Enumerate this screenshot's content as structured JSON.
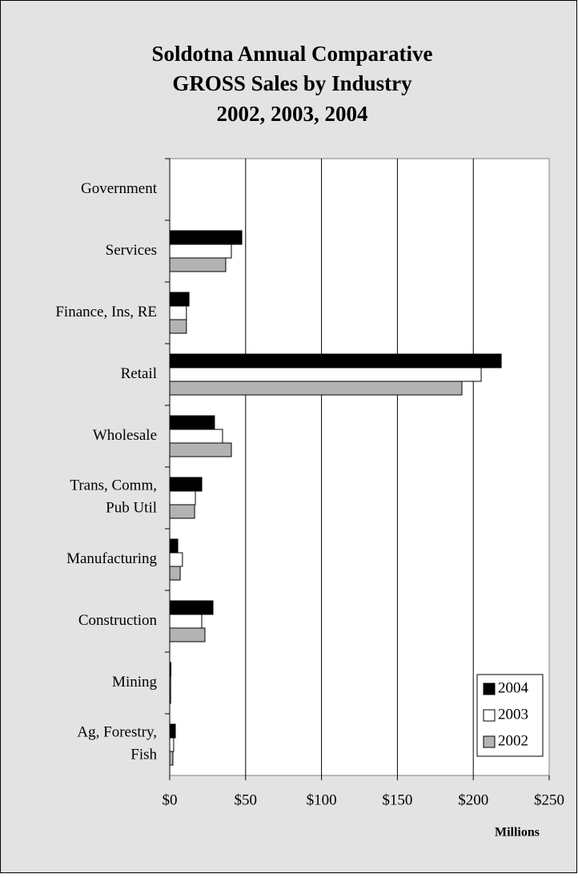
{
  "chart_data": {
    "type": "hbar",
    "title": [
      "Soldotna Annual Comparative",
      "GROSS Sales by Industry",
      "2002, 2003, 2004"
    ],
    "categories": [
      "Government",
      "Services",
      "Finance, Ins, RE",
      "Retail",
      "Wholesale",
      "Trans, Comm,\nPub Util",
      "Manufacturing",
      "Construction",
      "Mining",
      "Ag, Forestry,\nFish"
    ],
    "series": [
      {
        "name": "2004",
        "color": "#000000",
        "values": [
          0,
          47.5,
          12.7,
          218.4,
          29.5,
          21.1,
          5.3,
          28.5,
          0.8,
          3.7
        ]
      },
      {
        "name": "2003",
        "color": "#ffffff",
        "values": [
          0,
          40.6,
          11,
          205.2,
          34.8,
          16.9,
          8.4,
          21.1,
          0.6,
          2.6
        ]
      },
      {
        "name": "2002",
        "color": "#b3b3b3",
        "values": [
          0,
          36.9,
          11,
          192.5,
          40.6,
          16.4,
          6.9,
          23.2,
          0.6,
          2.1
        ]
      }
    ],
    "xlim": [
      0,
      250
    ],
    "xticks": [
      {
        "value": 0,
        "label": "$0"
      },
      {
        "value": 50,
        "label": "$50"
      },
      {
        "value": 100,
        "label": "$100"
      },
      {
        "value": 150,
        "label": "$150"
      },
      {
        "value": 200,
        "label": "$200"
      },
      {
        "value": 250,
        "label": "$250"
      }
    ],
    "xlabel": "Millions",
    "grid": true,
    "legend": "bottom-right"
  }
}
